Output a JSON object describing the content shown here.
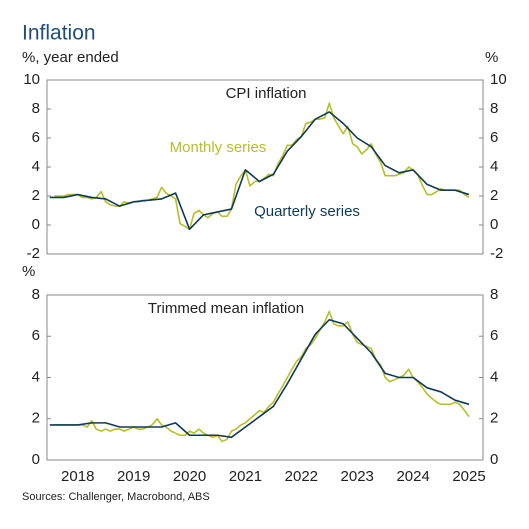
{
  "title": "Inflation",
  "source": "Sources: Challenger, Macrobond, ABS",
  "chart_data": [
    {
      "type": "line",
      "title": "CPI inflation",
      "y_label": "%, year ended",
      "y2_label": "%",
      "xlim": [
        2017.95,
        2025.75
      ],
      "ylim": [
        -2,
        10
      ],
      "yticks": [
        -2,
        0,
        2,
        4,
        6,
        8,
        10
      ],
      "y2lim": [
        -2,
        10
      ],
      "y2ticks": [
        -2,
        0,
        2,
        4,
        6,
        8,
        10
      ],
      "series": [
        {
          "name": "Monthly series",
          "color": "#b8bf26",
          "x": [
            2018.08,
            2018.17,
            2018.25,
            2018.33,
            2018.42,
            2018.5,
            2018.58,
            2018.67,
            2018.75,
            2018.83,
            2018.92,
            2019,
            2019.08,
            2019.17,
            2019.25,
            2019.33,
            2019.42,
            2019.5,
            2019.58,
            2019.67,
            2019.75,
            2019.83,
            2019.92,
            2020,
            2020.08,
            2020.17,
            2020.25,
            2020.33,
            2020.42,
            2020.5,
            2020.58,
            2020.67,
            2020.75,
            2020.83,
            2020.92,
            2021,
            2021.08,
            2021.17,
            2021.25,
            2021.33,
            2021.42,
            2021.5,
            2021.58,
            2021.67,
            2021.75,
            2021.83,
            2021.92,
            2022,
            2022.08,
            2022.17,
            2022.25,
            2022.33,
            2022.42,
            2022.5,
            2022.58,
            2022.67,
            2022.75,
            2022.83,
            2022.92,
            2023,
            2023.08,
            2023.17,
            2023.25,
            2023.33,
            2023.42,
            2023.5,
            2023.58,
            2023.67,
            2023.75,
            2023.83,
            2023.92,
            2024,
            2024.08,
            2024.17,
            2024.25,
            2024.33,
            2024.42,
            2024.5,
            2024.58,
            2024.67,
            2024.75,
            2024.83,
            2024.92,
            2025,
            2025.08,
            2025.17,
            2025.25,
            2025.33,
            2025.42,
            2025.5
          ],
          "values": [
            2.0,
            2.0,
            2.0,
            2.1,
            2.1,
            2.1,
            1.9,
            1.9,
            1.8,
            1.9,
            2.3,
            1.6,
            1.4,
            1.3,
            1.3,
            1.6,
            1.5,
            1.6,
            1.6,
            1.7,
            1.7,
            1.8,
            1.9,
            2.6,
            2.2,
            2.0,
            1.8,
            0.1,
            -0.1,
            -0.3,
            0.8,
            1.0,
            0.7,
            0.5,
            0.8,
            0.9,
            0.6,
            0.6,
            1.1,
            2.8,
            3.4,
            3.8,
            2.7,
            3.0,
            3.0,
            3.2,
            3.5,
            3.4,
            4.2,
            4.8,
            5.5,
            5.5,
            5.9,
            6.1,
            7.0,
            7.1,
            7.3,
            7.3,
            7.4,
            8.4,
            7.4,
            6.8,
            6.3,
            6.8,
            5.6,
            5.4,
            4.9,
            5.2,
            5.6,
            4.9,
            4.3,
            3.4,
            3.4,
            3.4,
            3.5,
            3.6,
            4.0,
            3.8,
            3.5,
            2.7,
            2.1,
            2.1,
            2.3,
            2.5,
            2.4,
            2.4,
            2.4,
            2.4,
            2.1,
            1.9
          ]
        },
        {
          "name": "Quarterly series",
          "color": "#0e3b57",
          "x": [
            2018,
            2018.25,
            2018.5,
            2018.75,
            2019,
            2019.25,
            2019.5,
            2019.75,
            2020,
            2020.25,
            2020.5,
            2020.75,
            2021,
            2021.25,
            2021.5,
            2021.75,
            2022,
            2022.25,
            2022.5,
            2022.75,
            2023,
            2023.25,
            2023.5,
            2023.75,
            2024,
            2024.25,
            2024.5,
            2024.75,
            2025,
            2025.25,
            2025.5
          ],
          "values": [
            1.9,
            1.9,
            2.1,
            1.9,
            1.8,
            1.3,
            1.6,
            1.7,
            1.8,
            2.2,
            -0.3,
            0.7,
            0.9,
            1.1,
            3.8,
            3.0,
            3.5,
            5.1,
            6.1,
            7.3,
            7.8,
            7.0,
            6.0,
            5.4,
            4.1,
            3.6,
            3.8,
            2.8,
            2.4,
            2.4,
            2.1
          ]
        }
      ]
    },
    {
      "type": "line",
      "title": "Trimmed mean inflation",
      "y_label": "%",
      "xlim": [
        2017.95,
        2025.75
      ],
      "ylim": [
        0,
        8
      ],
      "yticks": [
        0,
        2,
        4,
        6,
        8
      ],
      "y2lim": [
        0,
        8
      ],
      "y2ticks": [
        0,
        2,
        4,
        6,
        8
      ],
      "xticks": [
        {
          "value": 2018.5,
          "label": "2018"
        },
        {
          "value": 2019.5,
          "label": "2019"
        },
        {
          "value": 2020.5,
          "label": "2020"
        },
        {
          "value": 2021.5,
          "label": "2021"
        },
        {
          "value": 2022.5,
          "label": "2022"
        },
        {
          "value": 2023.5,
          "label": "2023"
        },
        {
          "value": 2024.5,
          "label": "2024"
        },
        {
          "value": 2025.5,
          "label": "2025"
        }
      ],
      "series": [
        {
          "color": "#b8bf26",
          "x": [
            2018.08,
            2018.17,
            2018.25,
            2018.33,
            2018.42,
            2018.5,
            2018.58,
            2018.67,
            2018.75,
            2018.83,
            2018.92,
            2019,
            2019.08,
            2019.17,
            2019.25,
            2019.33,
            2019.42,
            2019.5,
            2019.58,
            2019.67,
            2019.75,
            2019.83,
            2019.92,
            2020,
            2020.08,
            2020.17,
            2020.25,
            2020.33,
            2020.42,
            2020.5,
            2020.58,
            2020.67,
            2020.75,
            2020.83,
            2020.92,
            2021,
            2021.08,
            2021.17,
            2021.25,
            2021.33,
            2021.42,
            2021.5,
            2021.58,
            2021.67,
            2021.75,
            2021.83,
            2021.92,
            2022,
            2022.08,
            2022.17,
            2022.25,
            2022.33,
            2022.42,
            2022.5,
            2022.58,
            2022.67,
            2022.75,
            2022.83,
            2022.92,
            2023,
            2023.08,
            2023.17,
            2023.25,
            2023.33,
            2023.42,
            2023.5,
            2023.58,
            2023.67,
            2023.75,
            2023.83,
            2023.92,
            2024,
            2024.08,
            2024.17,
            2024.25,
            2024.33,
            2024.42,
            2024.5,
            2024.58,
            2024.67,
            2024.75,
            2024.83,
            2024.92,
            2025,
            2025.08,
            2025.17,
            2025.25,
            2025.33,
            2025.42,
            2025.5
          ],
          "values": [
            1.7,
            1.7,
            1.7,
            1.7,
            1.7,
            1.7,
            1.7,
            1.6,
            1.9,
            1.5,
            1.4,
            1.5,
            1.4,
            1.5,
            1.5,
            1.4,
            1.5,
            1.6,
            1.5,
            1.5,
            1.6,
            1.7,
            2.0,
            1.7,
            1.6,
            1.4,
            1.3,
            1.2,
            1.2,
            1.4,
            1.3,
            1.5,
            1.3,
            1.2,
            1.1,
            1.2,
            0.9,
            1.0,
            1.4,
            1.5,
            1.7,
            1.8,
            2.0,
            2.2,
            2.4,
            2.3,
            2.6,
            2.8,
            3.2,
            3.6,
            4.0,
            4.4,
            4.8,
            5.0,
            5.4,
            5.6,
            5.9,
            6.3,
            6.7,
            7.2,
            6.6,
            6.5,
            6.5,
            6.7,
            6.1,
            5.7,
            5.6,
            5.5,
            5.4,
            4.9,
            4.6,
            4.0,
            3.8,
            3.9,
            4.0,
            4.1,
            4.4,
            4.0,
            3.8,
            3.5,
            3.2,
            3.0,
            2.8,
            2.7,
            2.7,
            2.7,
            2.8,
            2.7,
            2.4,
            2.1
          ]
        },
        {
          "color": "#0e3b57",
          "x": [
            2018,
            2018.25,
            2018.5,
            2018.75,
            2019,
            2019.25,
            2019.5,
            2019.75,
            2020,
            2020.25,
            2020.5,
            2020.75,
            2021,
            2021.25,
            2021.5,
            2021.75,
            2022,
            2022.25,
            2022.5,
            2022.75,
            2023,
            2023.25,
            2023.5,
            2023.75,
            2024,
            2024.25,
            2024.5,
            2024.75,
            2025,
            2025.25,
            2025.5
          ],
          "values": [
            1.7,
            1.7,
            1.7,
            1.8,
            1.8,
            1.6,
            1.6,
            1.6,
            1.6,
            1.8,
            1.2,
            1.2,
            1.2,
            1.1,
            1.6,
            2.1,
            2.6,
            3.7,
            4.9,
            6.1,
            6.8,
            6.6,
            5.9,
            5.2,
            4.2,
            4.0,
            4.0,
            3.5,
            3.3,
            2.9,
            2.7
          ]
        }
      ]
    }
  ]
}
